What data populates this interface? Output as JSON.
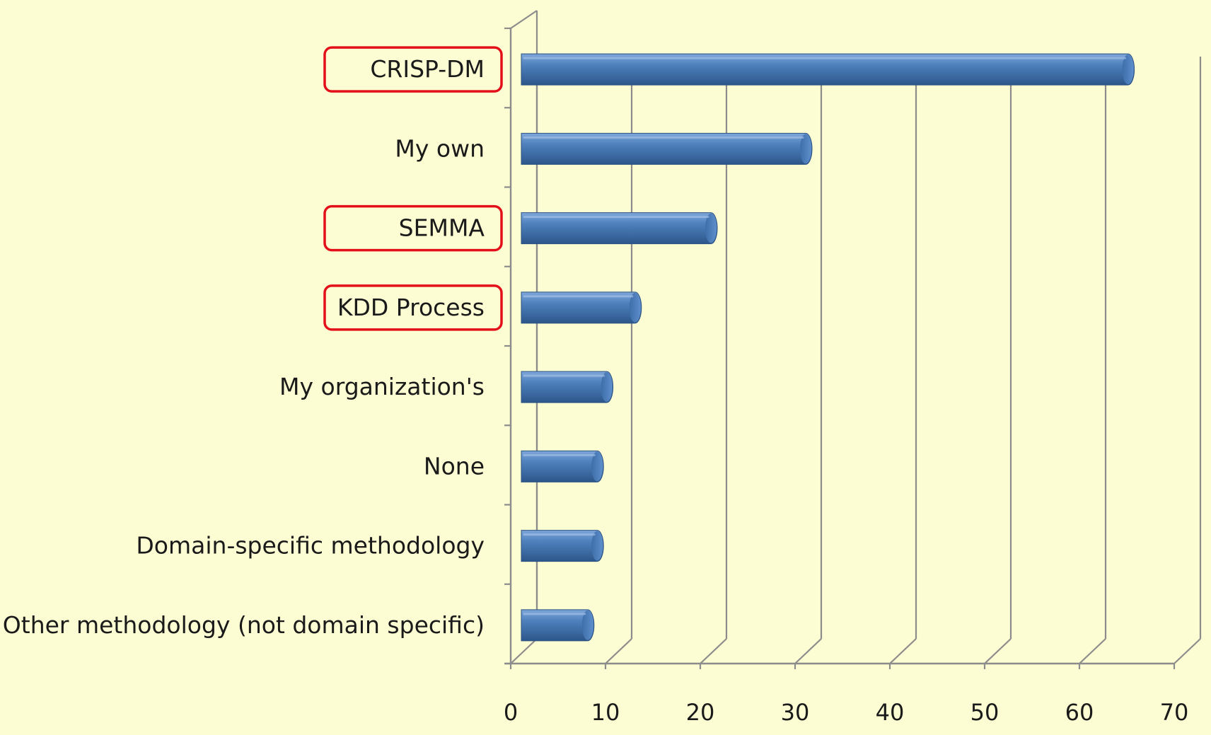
{
  "chart_data": {
    "type": "bar",
    "orientation": "horizontal",
    "style": "3d-cylinder",
    "categories": [
      "CRISP-DM",
      "My own",
      "SEMMA",
      "KDD Process",
      "My organization's",
      "None",
      "Domain-specific methodology",
      "Other methodology (not domain specific)"
    ],
    "values": [
      64,
      30,
      20,
      12,
      9,
      8,
      8,
      7
    ],
    "highlighted": [
      "CRISP-DM",
      "SEMMA",
      "KDD Process"
    ],
    "xlim": [
      0,
      70
    ],
    "xticks": [
      0,
      10,
      20,
      30,
      40,
      50,
      60,
      70
    ],
    "grid": true,
    "title": "",
    "xlabel": "",
    "ylabel": "",
    "colors": {
      "background": "#fdfdd3",
      "bar": "#4f81bd",
      "bar_dark": "#2f5a8f",
      "bar_light": "#8fb3e0",
      "grid": "#8c8c8c",
      "highlight_border": "#e3101a"
    }
  }
}
